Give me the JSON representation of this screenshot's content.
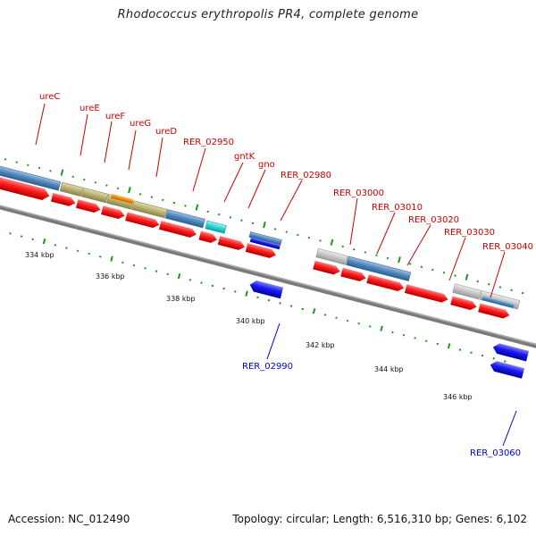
{
  "title": "Rhodococcus erythropolis PR4, complete genome",
  "footer": {
    "accession": "Accession: NC_012490",
    "summary": "Topology: circular; Length: 6,516,310 bp; Genes: 6,102"
  },
  "colors": {
    "background": "#ffffff",
    "cds_red": "#ff1a1a",
    "cds_blue": "#1a1aee",
    "gene_steelblue": "#4f86bd",
    "gene_tan": "#b8b070",
    "gene_orange": "#ff8800",
    "gene_cyan": "#2ad4d4",
    "gene_gray": "#c4c4c4",
    "backbone": "#808080",
    "tick_green": "#1a9a1a",
    "label_red": "#cc0000",
    "label_blue": "#0000cc"
  },
  "scale": {
    "unit": "kbp",
    "ticks": [
      "334 kbp",
      "336 kbp",
      "338 kbp",
      "340 kbp",
      "342 kbp",
      "344 kbp",
      "346 kbp"
    ]
  },
  "genes": {
    "top_labels": [
      "ureC",
      "ureE",
      "ureF",
      "ureG",
      "ureD",
      "RER_02950",
      "gntK",
      "gno",
      "RER_02980",
      "RER_03000",
      "RER_03010",
      "RER_03020",
      "RER_03030",
      "RER_03040"
    ],
    "bottom_labels": [
      "RER_02990",
      "RER_03060"
    ]
  }
}
